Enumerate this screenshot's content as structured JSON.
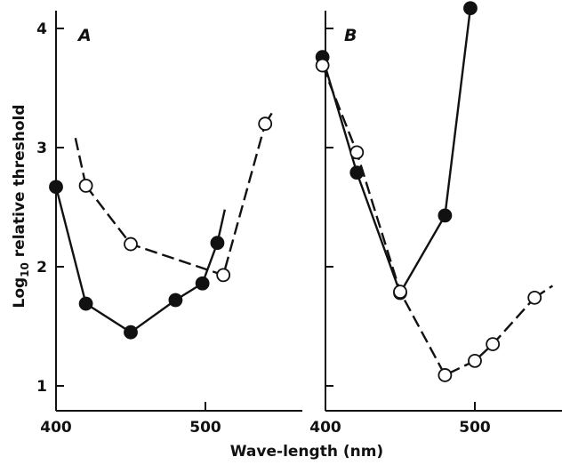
{
  "chart_data": [
    {
      "type": "line",
      "panel_label": "A",
      "x_ticks": [
        "400",
        "500"
      ],
      "y_ticks": [
        "1",
        "2",
        "3",
        "4"
      ],
      "xlim": [
        400,
        550
      ],
      "ylim": [
        1,
        4.25
      ],
      "series": [
        {
          "marker": "filled",
          "line": "solid",
          "points": [
            [
              400,
              2.67
            ],
            [
              420,
              1.69
            ],
            [
              450,
              1.45
            ],
            [
              480,
              1.72
            ],
            [
              498,
              1.86
            ],
            [
              508,
              2.2
            ]
          ],
          "extension": [
            [
              508,
              2.2
            ],
            [
              513,
              2.48
            ]
          ]
        },
        {
          "marker": "open",
          "line": "dashed",
          "points": [
            [
              420,
              2.68
            ],
            [
              450,
              2.19
            ],
            [
              512,
              1.93
            ],
            [
              540,
              3.2
            ]
          ],
          "start_extension": [
            [
              413,
              3.08
            ],
            [
              420,
              2.68
            ]
          ],
          "end_extension": [
            [
              540,
              3.2
            ],
            [
              545,
              3.3
            ]
          ]
        }
      ]
    },
    {
      "type": "line",
      "panel_label": "B",
      "x_ticks": [
        "400",
        "500"
      ],
      "y_ticks": [],
      "xlim": [
        400,
        560
      ],
      "ylim": [
        1,
        4.25
      ],
      "series": [
        {
          "marker": "filled",
          "line": "solid",
          "points": [
            [
              398,
              3.76
            ],
            [
              421,
              2.79
            ],
            [
              450,
              1.78
            ],
            [
              480,
              2.43
            ],
            [
              497,
              4.17
            ]
          ]
        },
        {
          "marker": "open",
          "line": "dashed",
          "points": [
            [
              398,
              3.69
            ],
            [
              421,
              2.96
            ],
            [
              450,
              1.79
            ],
            [
              480,
              1.09
            ],
            [
              500,
              1.21
            ],
            [
              512,
              1.35
            ],
            [
              540,
              1.74
            ]
          ],
          "end_extension": [
            [
              540,
              1.74
            ],
            [
              552,
              1.84
            ]
          ]
        }
      ]
    }
  ],
  "axes": {
    "ylabel": "Log10 relative threshold",
    "xlabel": "Wave-length (nm)"
  },
  "colors": {
    "ink": "#111111",
    "open_fill": "#ffffff"
  }
}
